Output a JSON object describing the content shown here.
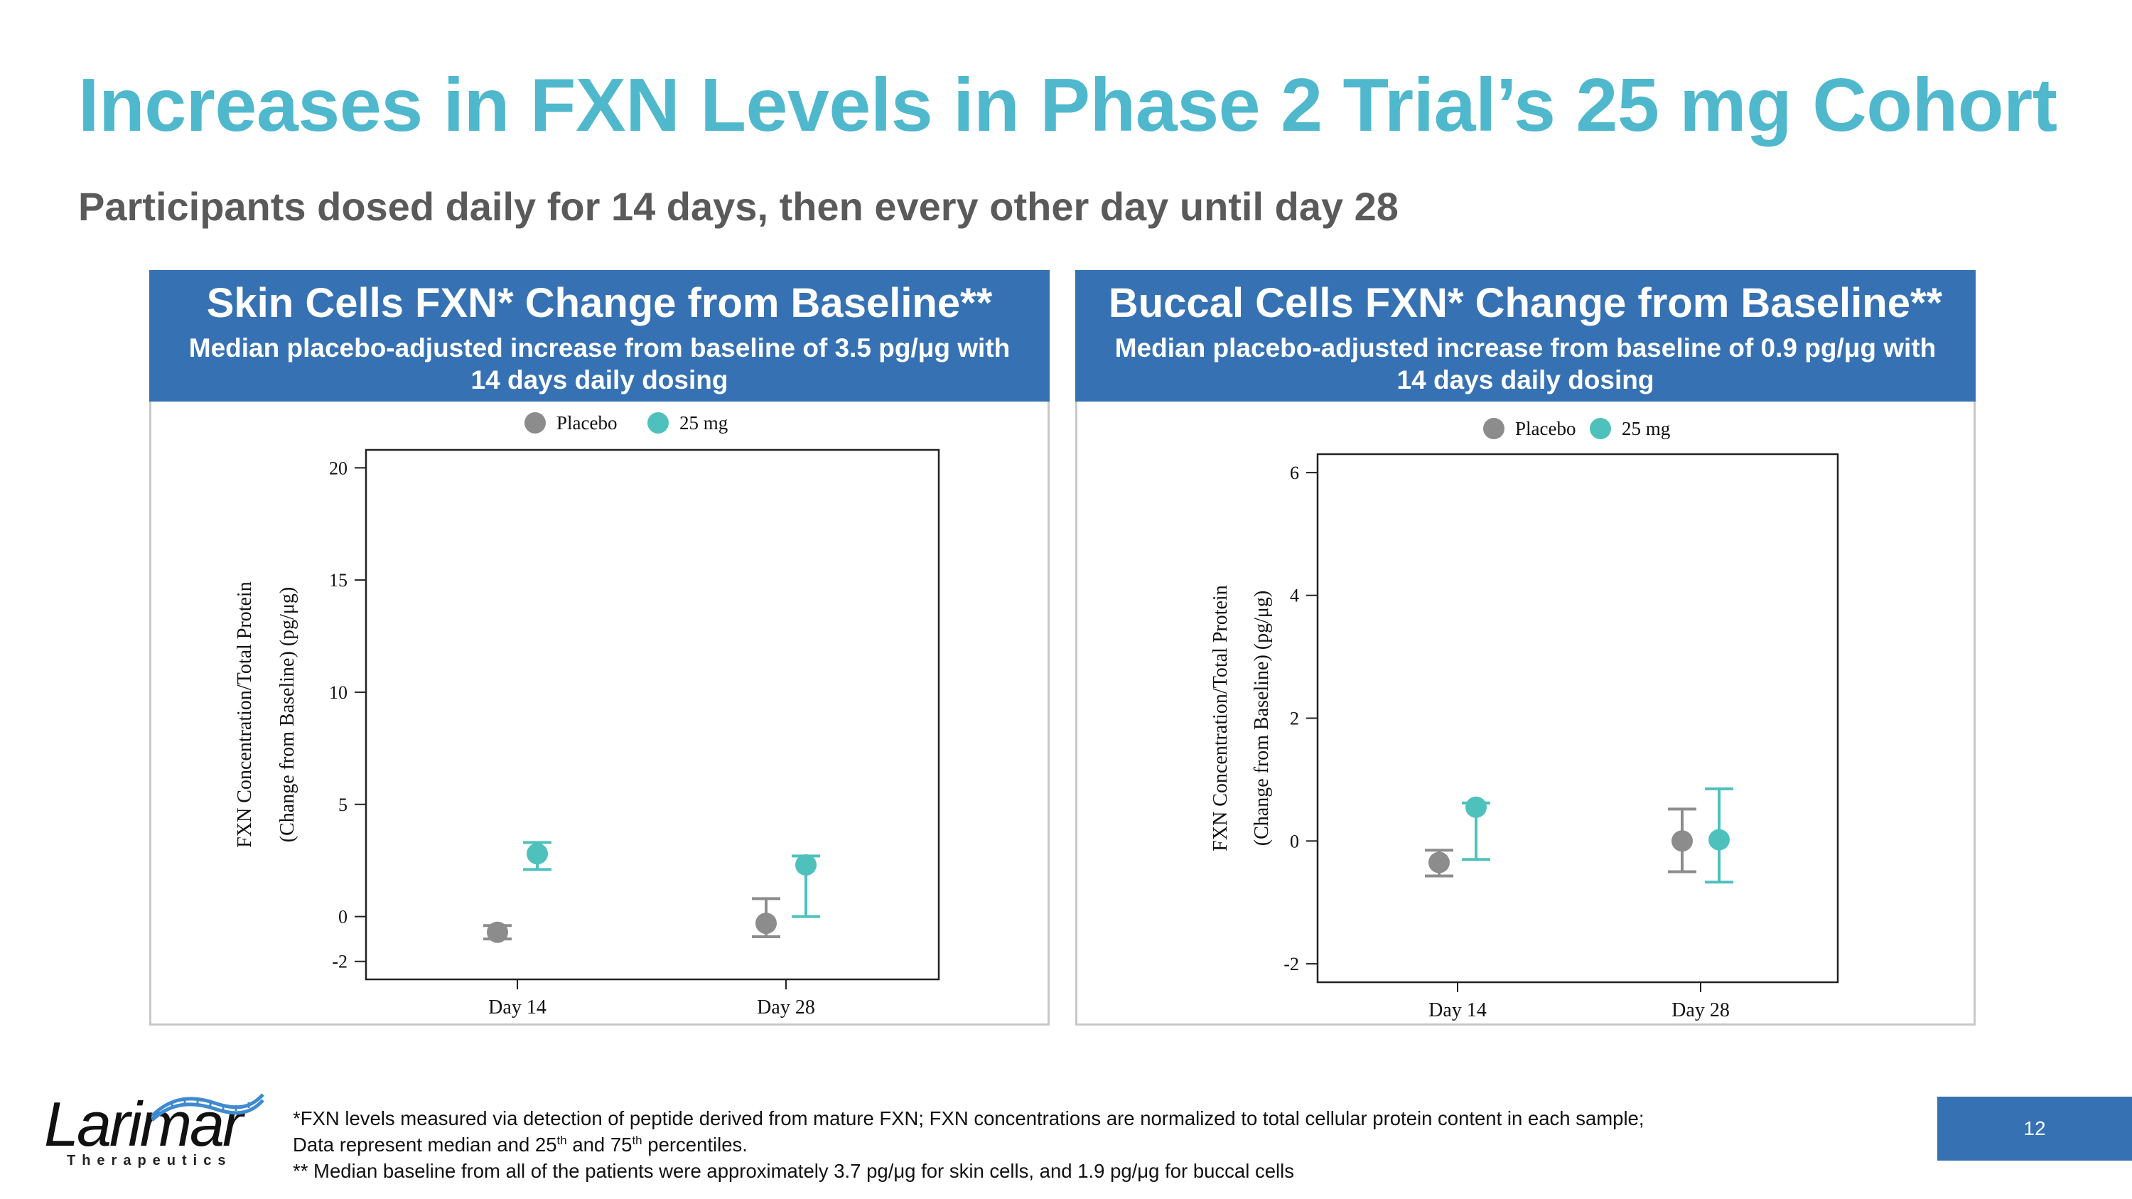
{
  "title": "Increases in FXN Levels in Phase 2 Trial’s 25 mg Cohort",
  "subtitle": "Participants dosed daily for 14 days, then every other day until day 28",
  "panels": [
    {
      "title": "Skin Cells FXN* Change from Baseline**",
      "subtitle": "Median placebo-adjusted increase from baseline of 3.5 pg/μg with 14 days daily dosing"
    },
    {
      "title": "Buccal Cells FXN* Change from Baseline**",
      "subtitle": "Median placebo-adjusted increase from baseline of 0.9 pg/μg with 14 days daily dosing"
    }
  ],
  "chart_data": [
    {
      "type": "scatter",
      "title": "Skin Cells FXN* Change from Baseline**",
      "ylabel_line1": "FXN Concentration/Total Protein",
      "ylabel_line2": "(Change from Baseline) (pg/μg)",
      "categories": [
        "Day 14",
        "Day 28"
      ],
      "yticks": [
        -2,
        0,
        5,
        10,
        15,
        20
      ],
      "ylim": [
        -2.8,
        20.8
      ],
      "legend": "top-center",
      "series": [
        {
          "name": "Placebo",
          "color": "#8c8c8c",
          "median": [
            -0.7,
            -0.3
          ],
          "p25": [
            -1.0,
            -0.9
          ],
          "p75": [
            -0.4,
            0.8
          ]
        },
        {
          "name": "25 mg",
          "color": "#4fc1bd",
          "median": [
            2.8,
            2.3
          ],
          "p25": [
            2.1,
            0.0
          ],
          "p75": [
            3.3,
            2.7
          ]
        }
      ]
    },
    {
      "type": "scatter",
      "title": "Buccal Cells FXN* Change from Baseline**",
      "ylabel_line1": "FXN Concentration/Total Protein",
      "ylabel_line2": "(Change from Baseline) (pg/μg)",
      "categories": [
        "Day 14",
        "Day 28"
      ],
      "yticks": [
        -2,
        0,
        2,
        4,
        6
      ],
      "ylim": [
        -2.3,
        6.3
      ],
      "legend": "top-center",
      "series": [
        {
          "name": "Placebo",
          "color": "#8c8c8c",
          "median": [
            -0.35,
            0.0
          ],
          "p25": [
            -0.57,
            -0.5
          ],
          "p75": [
            -0.15,
            0.52
          ]
        },
        {
          "name": "25 mg",
          "color": "#4fc1bd",
          "median": [
            0.55,
            0.02
          ],
          "p25": [
            -0.3,
            -0.67
          ],
          "p75": [
            0.62,
            0.85
          ]
        }
      ]
    }
  ],
  "logo": {
    "name": "Larimar",
    "tagline": "Therapeutics"
  },
  "footnotes": {
    "line1": "*FXN levels measured via detection of peptide derived from mature FXN; FXN concentrations are normalized to total cellular protein content in each sample;",
    "line2_a": "Data represent median and 25",
    "line2_sup1": "th",
    "line2_b": " and 75",
    "line2_sup2": "th",
    "line2_c": "  percentiles.",
    "line3": "**  Median baseline from all of the patients were approximately 3.7 pg/μg for skin cells, and 1.9 pg/μg for buccal cells"
  },
  "page_number": "12"
}
